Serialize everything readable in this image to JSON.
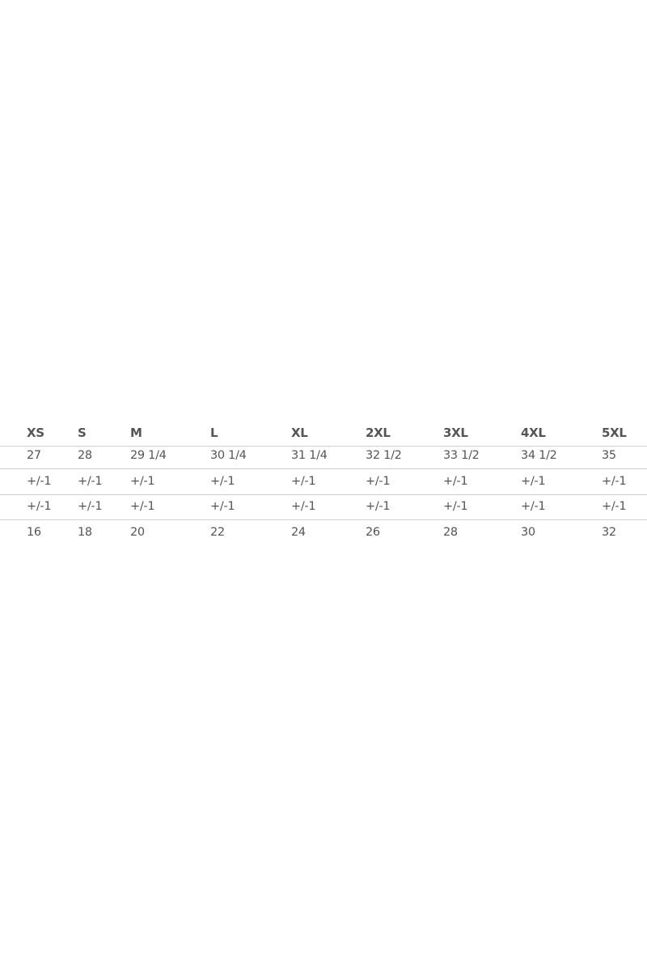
{
  "size_chart": {
    "headers": [
      "XS",
      "S",
      "M",
      "L",
      "XL",
      "2XL",
      "3XL",
      "4XL",
      "5XL"
    ],
    "rows": [
      [
        "27",
        "28",
        "29 1/4",
        "30 1/4",
        "31 1/4",
        "32 1/2",
        "33 1/2",
        "34 1/2",
        "35"
      ],
      [
        "+/-1",
        "+/-1",
        "+/-1",
        "+/-1",
        "+/-1",
        "+/-1",
        "+/-1",
        "+/-1",
        "+/-1"
      ],
      [
        "+/-1",
        "+/-1",
        "+/-1",
        "+/-1",
        "+/-1",
        "+/-1",
        "+/-1",
        "+/-1",
        "+/-1"
      ],
      [
        "16",
        "18",
        "20",
        "22",
        "24",
        "26",
        "28",
        "30",
        "32"
      ]
    ]
  }
}
